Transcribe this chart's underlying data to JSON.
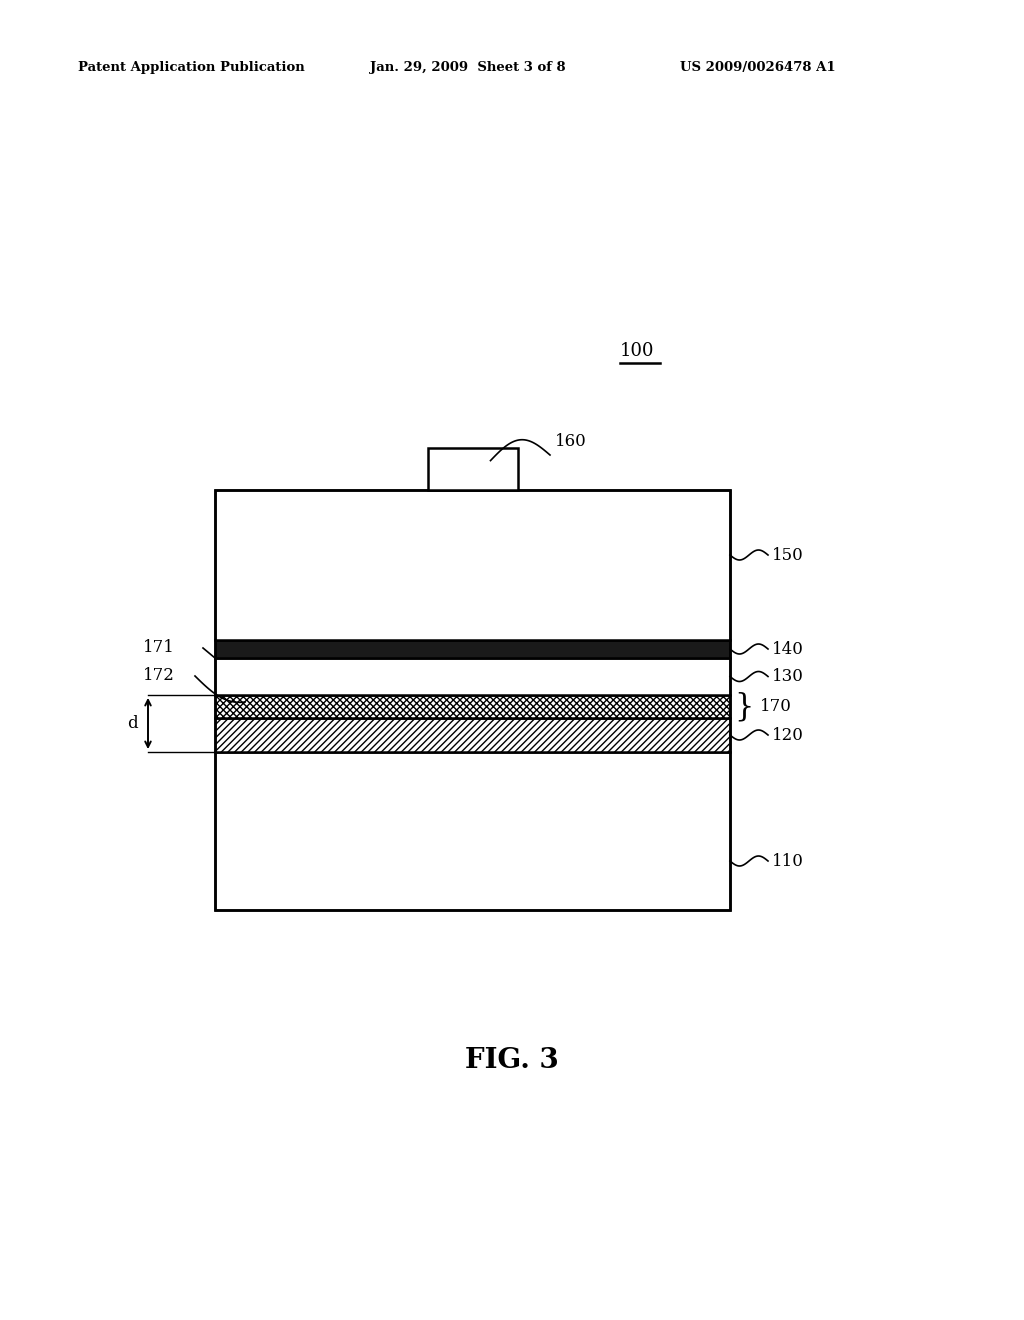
{
  "bg_color": "#ffffff",
  "header_left": "Patent Application Publication",
  "header_mid": "Jan. 29, 2009  Sheet 3 of 8",
  "header_right": "US 2009/0026478 A1",
  "fig_label": "FIG. 3",
  "ref_100": "100",
  "ref_160": "160",
  "ref_150": "150",
  "ref_140": "140",
  "ref_130": "130",
  "ref_170": "170",
  "ref_120": "120",
  "ref_110": "110",
  "ref_171": "171",
  "ref_172": "172",
  "ref_d": "d"
}
